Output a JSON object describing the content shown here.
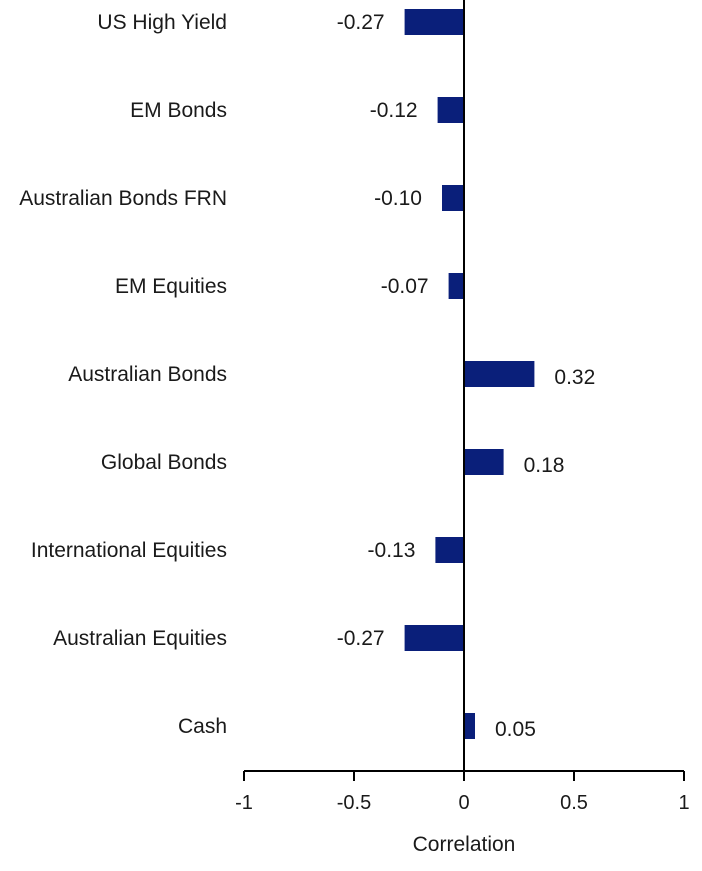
{
  "chart_data": {
    "type": "bar",
    "orientation": "horizontal",
    "categories": [
      "US High Yield",
      "EM Bonds",
      "Australian Bonds FRN",
      "EM Equities",
      "Australian Bonds",
      "Global Bonds",
      "International Equities",
      "Australian Equities",
      "Cash"
    ],
    "values": [
      -0.27,
      -0.12,
      -0.1,
      -0.07,
      0.32,
      0.18,
      -0.13,
      -0.27,
      0.05
    ],
    "data_labels": [
      "-0.27",
      "-0.12",
      "-0.10",
      "-0.07",
      "0.32",
      "0.18",
      "-0.13",
      "-0.27",
      "0.05"
    ],
    "xlabel": "Correlation",
    "xlim": [
      -1,
      1
    ],
    "xticks": [
      -1,
      -0.5,
      0,
      0.5,
      1
    ],
    "xtick_labels": [
      "-1",
      "-0.5",
      "0",
      "0.5",
      "1"
    ],
    "bar_color": "#0a1f7a",
    "grid": false,
    "legend": "none"
  }
}
